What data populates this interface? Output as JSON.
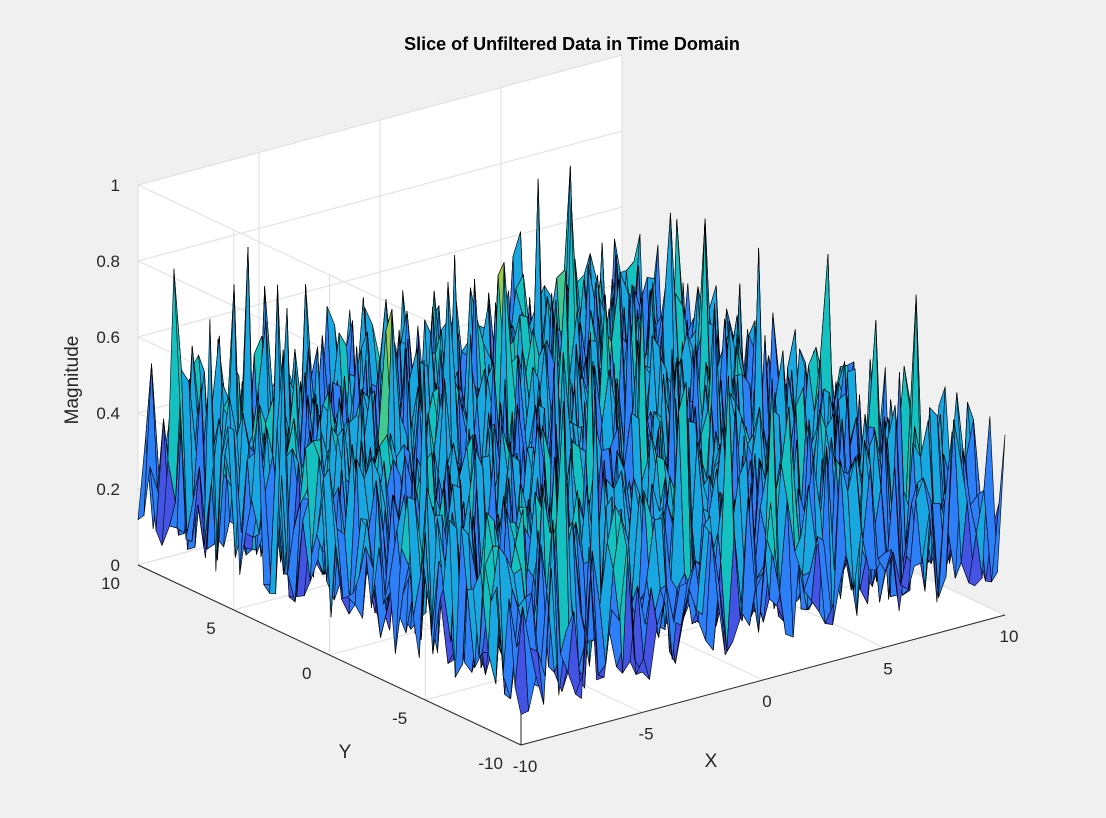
{
  "chart_data": {
    "type": "surface",
    "title": "Slice of Unfiltered Data in Time Domain",
    "xlabel": "X",
    "ylabel": "Y",
    "zlabel": "Magnitude",
    "xlim": [
      -10,
      10
    ],
    "ylim": [
      -10,
      10
    ],
    "zlim": [
      0,
      1
    ],
    "xticks": [
      "-10",
      "-5",
      "0",
      "5",
      "10"
    ],
    "yticks": [
      "-10",
      "-5",
      "0",
      "5",
      "10"
    ],
    "zticks": [
      "0",
      "0.2",
      "0.4",
      "0.6",
      "0.8",
      "1"
    ],
    "grid": true,
    "colormap": "parula",
    "colormap_colors": [
      "#3e26a8",
      "#4353e4",
      "#2d7ff8",
      "#18a7e0",
      "#14c0c0",
      "#43c98f",
      "#9ac94c",
      "#e0b536",
      "#f8cc28",
      "#f9fb0e"
    ],
    "surface_description": "unfiltered noise surface over a 64x64 grid, magnitudes mostly 0.05–0.6 with rare peaks near 0.85"
  }
}
